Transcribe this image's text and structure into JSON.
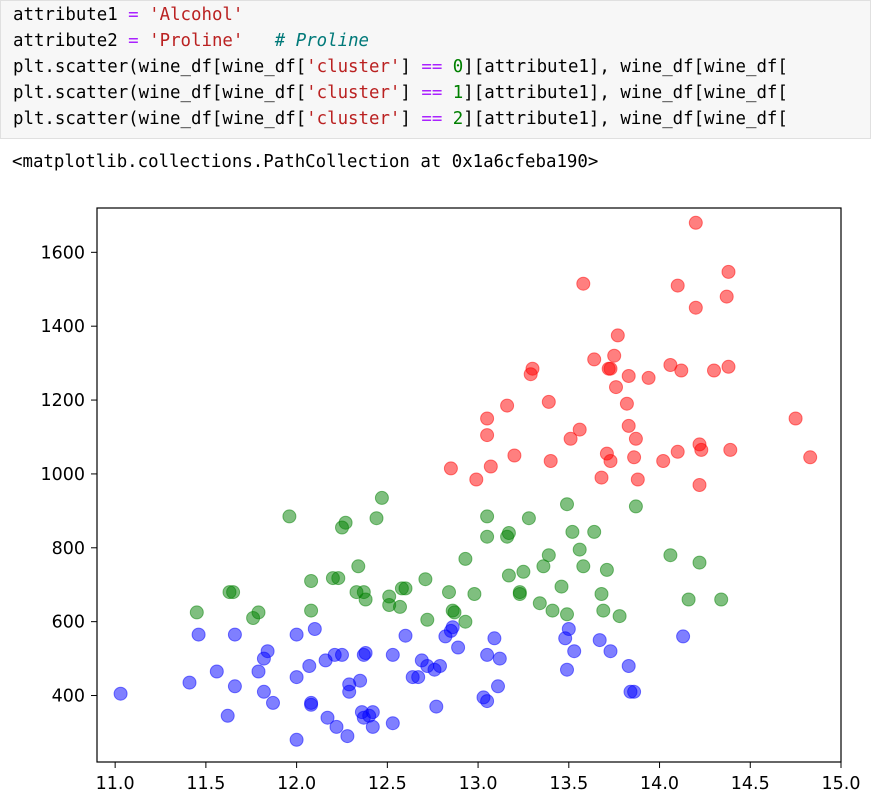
{
  "code": {
    "lines": [
      [
        [
          "attribute1 ",
          ""
        ],
        [
          "=",
          "op"
        ],
        [
          " ",
          ""
        ],
        [
          "'Alcohol'",
          "str"
        ]
      ],
      [
        [
          "attribute2 ",
          ""
        ],
        [
          "=",
          "op"
        ],
        [
          " ",
          ""
        ],
        [
          "'Proline'",
          "str"
        ],
        [
          "   ",
          ""
        ],
        [
          "# Proline",
          "com"
        ]
      ],
      [
        [
          "plt.scatter(wine_df[wine_df[",
          ""
        ],
        [
          "'cluster'",
          "str"
        ],
        [
          "] ",
          ""
        ],
        [
          "==",
          "op"
        ],
        [
          " ",
          ""
        ],
        [
          "0",
          "num"
        ],
        [
          "][attribute1], wine_df[wine_df[",
          ""
        ]
      ],
      [
        [
          "plt.scatter(wine_df[wine_df[",
          ""
        ],
        [
          "'cluster'",
          "str"
        ],
        [
          "] ",
          ""
        ],
        [
          "==",
          "op"
        ],
        [
          " ",
          ""
        ],
        [
          "1",
          "num"
        ],
        [
          "][attribute1], wine_df[wine_df[",
          ""
        ]
      ],
      [
        [
          "plt.scatter(wine_df[wine_df[",
          ""
        ],
        [
          "'cluster'",
          "str"
        ],
        [
          "] ",
          ""
        ],
        [
          "==",
          "op"
        ],
        [
          " ",
          ""
        ],
        [
          "2",
          "num"
        ],
        [
          "][attribute1], wine_df[wine_df[",
          ""
        ]
      ]
    ]
  },
  "output": {
    "text": "<matplotlib.collections.PathCollection at 0x1a6cfeba190>"
  },
  "colors": {
    "red": "#ff0000",
    "green": "#008000",
    "blue": "#0000ff",
    "axes": "#000000"
  },
  "chart_data": {
    "type": "scatter",
    "title": "",
    "xlabel": "",
    "ylabel": "",
    "xlim": [
      10.9,
      15.0
    ],
    "ylim": [
      220,
      1720
    ],
    "xticks": [
      "11.0",
      "11.5",
      "12.0",
      "12.5",
      "13.0",
      "13.5",
      "14.0",
      "14.5",
      "15.0"
    ],
    "yticks": [
      "400",
      "600",
      "800",
      "1000",
      "1200",
      "1400",
      "1600"
    ],
    "grid": false,
    "marker_alpha": 0.5,
    "series": [
      {
        "color": "red",
        "points": [
          [
            14.2,
            1680
          ],
          [
            13.58,
            1515
          ],
          [
            14.1,
            1510
          ],
          [
            14.38,
            1547
          ],
          [
            14.2,
            1450
          ],
          [
            14.37,
            1480
          ],
          [
            13.77,
            1375
          ],
          [
            13.73,
            1285
          ],
          [
            13.75,
            1320
          ],
          [
            13.64,
            1310
          ],
          [
            14.06,
            1295
          ],
          [
            14.12,
            1280
          ],
          [
            14.3,
            1280
          ],
          [
            14.38,
            1290
          ],
          [
            13.72,
            1285
          ],
          [
            13.3,
            1285
          ],
          [
            13.29,
            1270
          ],
          [
            13.83,
            1265
          ],
          [
            13.94,
            1260
          ],
          [
            13.76,
            1235
          ],
          [
            13.16,
            1185
          ],
          [
            13.39,
            1195
          ],
          [
            13.82,
            1190
          ],
          [
            13.83,
            1130
          ],
          [
            13.05,
            1150
          ],
          [
            13.05,
            1105
          ],
          [
            13.56,
            1120
          ],
          [
            13.51,
            1095
          ],
          [
            13.87,
            1095
          ],
          [
            14.22,
            1080
          ],
          [
            14.75,
            1150
          ],
          [
            14.83,
            1045
          ],
          [
            14.1,
            1060
          ],
          [
            14.23,
            1065
          ],
          [
            14.39,
            1065
          ],
          [
            13.86,
            1045
          ],
          [
            14.02,
            1035
          ],
          [
            13.4,
            1035
          ],
          [
            13.73,
            1035
          ],
          [
            13.2,
            1050
          ],
          [
            13.07,
            1020
          ],
          [
            12.85,
            1015
          ],
          [
            13.71,
            1055
          ],
          [
            13.68,
            990
          ],
          [
            13.88,
            985
          ],
          [
            12.99,
            985
          ],
          [
            14.22,
            970
          ]
        ]
      },
      {
        "color": "green",
        "points": [
          [
            12.47,
            935
          ],
          [
            13.49,
            918
          ],
          [
            13.87,
            912
          ],
          [
            11.96,
            885
          ],
          [
            13.05,
            885
          ],
          [
            12.44,
            880
          ],
          [
            12.27,
            868
          ],
          [
            12.25,
            855
          ],
          [
            13.28,
            880
          ],
          [
            13.17,
            840
          ],
          [
            13.05,
            830
          ],
          [
            13.16,
            830
          ],
          [
            13.52,
            843
          ],
          [
            13.64,
            843
          ],
          [
            13.56,
            795
          ],
          [
            12.93,
            770
          ],
          [
            13.39,
            780
          ],
          [
            14.06,
            780
          ],
          [
            12.34,
            750
          ],
          [
            13.36,
            750
          ],
          [
            13.58,
            750
          ],
          [
            14.22,
            760
          ],
          [
            13.25,
            735
          ],
          [
            13.71,
            740
          ],
          [
            13.17,
            725
          ],
          [
            12.23,
            718
          ],
          [
            12.2,
            718
          ],
          [
            12.08,
            710
          ],
          [
            12.71,
            715
          ],
          [
            12.58,
            690
          ],
          [
            13.46,
            695
          ],
          [
            12.37,
            680
          ],
          [
            12.33,
            680
          ],
          [
            12.6,
            690
          ],
          [
            13.23,
            680
          ],
          [
            13.23,
            675
          ],
          [
            11.63,
            680
          ],
          [
            11.65,
            680
          ],
          [
            13.68,
            675
          ],
          [
            12.84,
            680
          ],
          [
            12.98,
            675
          ],
          [
            12.51,
            668
          ],
          [
            12.38,
            660
          ],
          [
            12.51,
            645
          ],
          [
            13.34,
            650
          ],
          [
            14.16,
            660
          ],
          [
            14.34,
            660
          ],
          [
            12.57,
            640
          ],
          [
            13.69,
            630
          ],
          [
            13.41,
            630
          ],
          [
            12.08,
            630
          ],
          [
            11.45,
            625
          ],
          [
            11.79,
            625
          ],
          [
            12.86,
            630
          ],
          [
            12.87,
            625
          ],
          [
            13.49,
            620
          ],
          [
            13.78,
            615
          ],
          [
            11.76,
            610
          ],
          [
            12.72,
            605
          ],
          [
            12.93,
            600
          ]
        ]
      },
      {
        "color": "blue",
        "points": [
          [
            13.5,
            580
          ],
          [
            12.86,
            585
          ],
          [
            12.85,
            575
          ],
          [
            12.1,
            580
          ],
          [
            12.0,
            565
          ],
          [
            11.46,
            565
          ],
          [
            11.66,
            565
          ],
          [
            12.6,
            562
          ],
          [
            13.09,
            555
          ],
          [
            12.82,
            560
          ],
          [
            14.13,
            560
          ],
          [
            13.48,
            555
          ],
          [
            13.67,
            550
          ],
          [
            13.53,
            520
          ],
          [
            12.89,
            530
          ],
          [
            13.73,
            520
          ],
          [
            11.84,
            520
          ],
          [
            12.21,
            510
          ],
          [
            12.25,
            510
          ],
          [
            12.37,
            510
          ],
          [
            12.38,
            515
          ],
          [
            12.53,
            510
          ],
          [
            13.05,
            510
          ],
          [
            13.12,
            500
          ],
          [
            11.82,
            500
          ],
          [
            12.16,
            495
          ],
          [
            12.69,
            495
          ],
          [
            12.72,
            480
          ],
          [
            13.49,
            470
          ],
          [
            13.83,
            480
          ],
          [
            12.07,
            480
          ],
          [
            12.76,
            470
          ],
          [
            11.56,
            465
          ],
          [
            12.79,
            480
          ],
          [
            11.79,
            465
          ],
          [
            12.0,
            450
          ],
          [
            12.64,
            450
          ],
          [
            12.67,
            450
          ],
          [
            11.41,
            435
          ],
          [
            11.66,
            425
          ],
          [
            12.29,
            430
          ],
          [
            12.35,
            440
          ],
          [
            13.11,
            425
          ],
          [
            11.82,
            410
          ],
          [
            12.29,
            410
          ],
          [
            13.84,
            410
          ],
          [
            13.86,
            410
          ],
          [
            11.03,
            405
          ],
          [
            13.03,
            395
          ],
          [
            13.05,
            385
          ],
          [
            12.08,
            380
          ],
          [
            12.08,
            375
          ],
          [
            11.87,
            380
          ],
          [
            12.77,
            370
          ],
          [
            12.36,
            355
          ],
          [
            12.42,
            355
          ],
          [
            12.4,
            345
          ],
          [
            12.37,
            340
          ],
          [
            12.17,
            340
          ],
          [
            11.62,
            345
          ],
          [
            12.53,
            325
          ],
          [
            12.42,
            315
          ],
          [
            12.22,
            315
          ],
          [
            12.28,
            290
          ],
          [
            12.0,
            280
          ]
        ]
      }
    ]
  }
}
